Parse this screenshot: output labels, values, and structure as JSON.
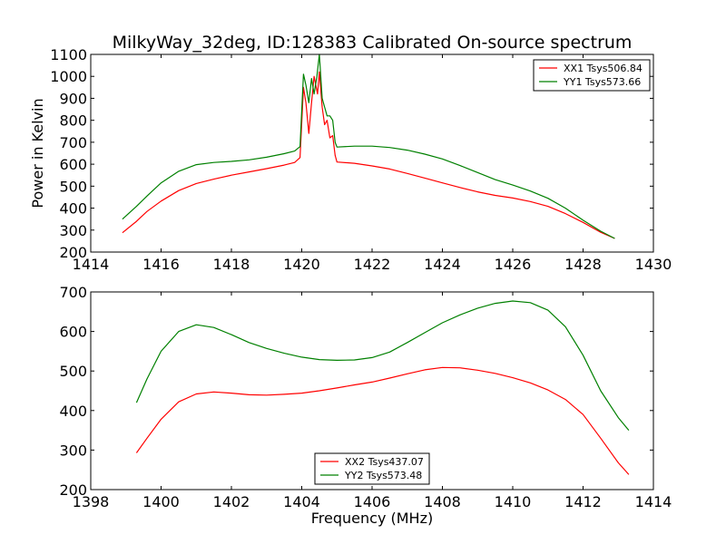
{
  "chart_data": [
    {
      "type": "line",
      "title": "MilkyWay_32deg, ID:128383 Calibrated On-source spectrum",
      "xlabel": "",
      "ylabel": "Power in Kelvin",
      "xlim": [
        1414,
        1430
      ],
      "ylim": [
        200,
        1100
      ],
      "xticks": [
        1414,
        1416,
        1418,
        1420,
        1422,
        1424,
        1426,
        1428,
        1430
      ],
      "yticks": [
        200,
        300,
        400,
        500,
        600,
        700,
        800,
        900,
        1000,
        1100
      ],
      "legend_position": "top-right",
      "series": [
        {
          "name": "XX1 Tsys506.84",
          "color": "#ff0000",
          "x": [
            1414.9,
            1415.3,
            1415.6,
            1416.0,
            1416.5,
            1417.0,
            1417.5,
            1418.0,
            1418.5,
            1419.0,
            1419.5,
            1419.8,
            1419.95,
            1420.05,
            1420.12,
            1420.2,
            1420.28,
            1420.35,
            1420.45,
            1420.5,
            1420.58,
            1420.65,
            1420.72,
            1420.8,
            1420.88,
            1420.95,
            1421.0,
            1421.5,
            1422.0,
            1422.5,
            1423.0,
            1423.5,
            1424.0,
            1424.5,
            1425.0,
            1425.5,
            1426.0,
            1426.5,
            1427.0,
            1427.5,
            1428.0,
            1428.5,
            1428.9
          ],
          "y": [
            288,
            340,
            385,
            432,
            480,
            512,
            532,
            550,
            565,
            580,
            596,
            608,
            630,
            950,
            880,
            740,
            880,
            1000,
            920,
            1020,
            860,
            780,
            800,
            720,
            730,
            640,
            610,
            604,
            592,
            578,
            558,
            537,
            515,
            494,
            474,
            458,
            446,
            430,
            408,
            375,
            335,
            290,
            262
          ]
        },
        {
          "name": "YY1 Tsys573.66",
          "color": "#008000",
          "x": [
            1414.9,
            1415.3,
            1415.6,
            1416.0,
            1416.5,
            1417.0,
            1417.5,
            1418.0,
            1418.5,
            1419.0,
            1419.5,
            1419.8,
            1419.95,
            1420.05,
            1420.12,
            1420.2,
            1420.28,
            1420.35,
            1420.43,
            1420.5,
            1420.58,
            1420.65,
            1420.72,
            1420.8,
            1420.88,
            1420.95,
            1421.0,
            1421.5,
            1422.0,
            1422.5,
            1423.0,
            1423.5,
            1424.0,
            1424.5,
            1425.0,
            1425.5,
            1426.0,
            1426.5,
            1427.0,
            1427.5,
            1428.0,
            1428.5,
            1428.9
          ],
          "y": [
            350,
            408,
            455,
            515,
            568,
            598,
            608,
            613,
            620,
            632,
            648,
            660,
            680,
            1010,
            960,
            880,
            990,
            920,
            1000,
            1100,
            900,
            860,
            820,
            820,
            800,
            700,
            678,
            682,
            682,
            676,
            664,
            646,
            624,
            594,
            562,
            530,
            505,
            478,
            445,
            400,
            345,
            295,
            262
          ]
        }
      ]
    },
    {
      "type": "line",
      "title": "",
      "xlabel": "Frequency (MHz)",
      "ylabel": "",
      "xlim": [
        1398,
        1414
      ],
      "ylim": [
        200,
        700
      ],
      "xticks": [
        1398,
        1400,
        1402,
        1404,
        1406,
        1408,
        1410,
        1412,
        1414
      ],
      "yticks": [
        200,
        300,
        400,
        500,
        600,
        700
      ],
      "legend_position": "bottom-center",
      "series": [
        {
          "name": "XX2 Tsys437.07",
          "color": "#ff0000",
          "x": [
            1399.3,
            1399.6,
            1400.0,
            1400.5,
            1401.0,
            1401.5,
            1402.0,
            1402.5,
            1403.0,
            1403.5,
            1404.0,
            1404.5,
            1405.0,
            1405.5,
            1406.0,
            1406.5,
            1407.0,
            1407.5,
            1408.0,
            1408.5,
            1409.0,
            1409.5,
            1410.0,
            1410.5,
            1411.0,
            1411.5,
            1412.0,
            1412.5,
            1413.0,
            1413.3
          ],
          "y": [
            293,
            330,
            378,
            422,
            442,
            447,
            444,
            440,
            439,
            441,
            444,
            450,
            457,
            465,
            472,
            482,
            493,
            503,
            509,
            508,
            502,
            494,
            483,
            470,
            452,
            428,
            390,
            330,
            268,
            238
          ]
        },
        {
          "name": "YY2 Tsys573.48",
          "color": "#008000",
          "x": [
            1399.3,
            1399.6,
            1400.0,
            1400.5,
            1401.0,
            1401.5,
            1402.0,
            1402.5,
            1403.0,
            1403.5,
            1404.0,
            1404.5,
            1405.0,
            1405.5,
            1406.0,
            1406.5,
            1407.0,
            1407.5,
            1408.0,
            1408.5,
            1409.0,
            1409.5,
            1410.0,
            1410.5,
            1411.0,
            1411.5,
            1412.0,
            1412.5,
            1413.0,
            1413.3
          ],
          "y": [
            420,
            480,
            550,
            600,
            617,
            610,
            592,
            572,
            557,
            545,
            535,
            529,
            527,
            528,
            534,
            548,
            572,
            597,
            622,
            642,
            659,
            671,
            677,
            673,
            654,
            612,
            540,
            450,
            382,
            350
          ]
        }
      ]
    }
  ]
}
